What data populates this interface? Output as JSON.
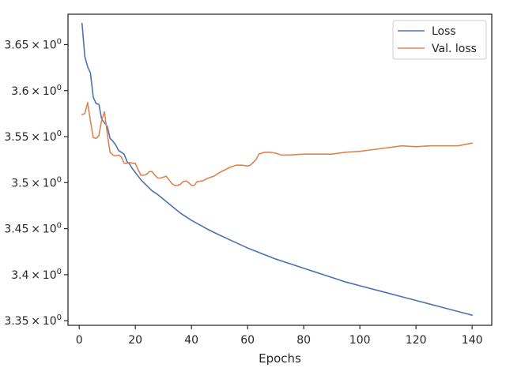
{
  "chart_data": {
    "type": "line",
    "title": "",
    "xlabel": "Epochs",
    "ylabel": "",
    "xlim": [
      -4,
      147
    ],
    "ylim": [
      3.345,
      3.683
    ],
    "grid": false,
    "legend_position": "top-right",
    "x_ticks": [
      0,
      20,
      40,
      60,
      80,
      100,
      120,
      140
    ],
    "x_tick_labels": [
      "0",
      "20",
      "40",
      "60",
      "80",
      "100",
      "120",
      "140"
    ],
    "y_ticks": [
      3.35,
      3.4,
      3.45,
      3.5,
      3.55,
      3.6,
      3.65
    ],
    "y_tick_labels": [
      "3.35",
      "3.4",
      "3.45",
      "3.5",
      "3.55",
      "3.6",
      "3.65"
    ],
    "y_tick_suffix": "0",
    "series": [
      {
        "name": "Loss",
        "color": "#4c72b0",
        "x": [
          1,
          2,
          3,
          4,
          5,
          6,
          7,
          8,
          9,
          10,
          11,
          12,
          13,
          14,
          15,
          16,
          17,
          18,
          19,
          20,
          21,
          22,
          23,
          24,
          25,
          26,
          28,
          30,
          32,
          34,
          36,
          38,
          40,
          43,
          46,
          50,
          55,
          60,
          65,
          70,
          75,
          80,
          85,
          90,
          95,
          100,
          105,
          110,
          115,
          120,
          125,
          130,
          135,
          140
        ],
        "y": [
          3.673,
          3.637,
          3.626,
          3.619,
          3.593,
          3.586,
          3.585,
          3.569,
          3.565,
          3.561,
          3.548,
          3.545,
          3.541,
          3.535,
          3.533,
          3.531,
          3.523,
          3.52,
          3.515,
          3.511,
          3.507,
          3.503,
          3.5,
          3.497,
          3.494,
          3.491,
          3.487,
          3.482,
          3.477,
          3.472,
          3.467,
          3.463,
          3.459,
          3.454,
          3.449,
          3.443,
          3.436,
          3.429,
          3.423,
          3.417,
          3.412,
          3.407,
          3.402,
          3.397,
          3.392,
          3.388,
          3.384,
          3.38,
          3.376,
          3.372,
          3.368,
          3.364,
          3.36,
          3.356
        ]
      },
      {
        "name": "Val. loss",
        "color": "#dd8452",
        "x": [
          1,
          2,
          3,
          4,
          5,
          6,
          7,
          8,
          9,
          10,
          11,
          12,
          13,
          14,
          15,
          16,
          17,
          18,
          19,
          20,
          21,
          22,
          23,
          24,
          25,
          26,
          27,
          28,
          29,
          30,
          31,
          32,
          33,
          34,
          35,
          36,
          37,
          38,
          39,
          40,
          41,
          42,
          44,
          46,
          48,
          50,
          52,
          54,
          56,
          58,
          60,
          61,
          62,
          63,
          64,
          66,
          68,
          70,
          72,
          75,
          80,
          85,
          90,
          95,
          100,
          105,
          110,
          115,
          120,
          125,
          130,
          135,
          140
        ],
        "y": [
          3.574,
          3.575,
          3.587,
          3.567,
          3.549,
          3.548,
          3.551,
          3.568,
          3.577,
          3.553,
          3.533,
          3.53,
          3.529,
          3.53,
          3.528,
          3.521,
          3.521,
          3.522,
          3.521,
          3.521,
          3.514,
          3.508,
          3.508,
          3.509,
          3.512,
          3.512,
          3.508,
          3.505,
          3.505,
          3.506,
          3.507,
          3.503,
          3.499,
          3.497,
          3.497,
          3.498,
          3.501,
          3.502,
          3.5,
          3.497,
          3.497,
          3.501,
          3.502,
          3.505,
          3.507,
          3.511,
          3.514,
          3.517,
          3.519,
          3.519,
          3.518,
          3.519,
          3.522,
          3.525,
          3.531,
          3.533,
          3.533,
          3.532,
          3.53,
          3.53,
          3.531,
          3.531,
          3.531,
          3.533,
          3.534,
          3.536,
          3.538,
          3.54,
          3.539,
          3.54,
          3.54,
          3.54,
          3.543
        ]
      }
    ]
  }
}
